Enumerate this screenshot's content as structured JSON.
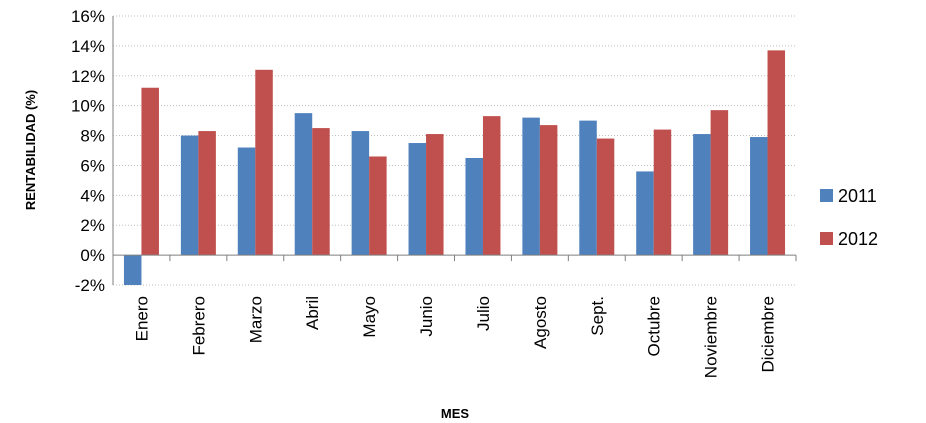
{
  "chart_data": {
    "type": "bar",
    "categories": [
      "Enero",
      "Febrero",
      "Marzo",
      "Abril",
      "Mayo",
      "Junio",
      "Julio",
      "Agosto",
      "Sept.",
      "Octubre",
      "Noviembre",
      "Diciembre"
    ],
    "series": [
      {
        "name": "2011",
        "color": "#4f81bd",
        "values": [
          -2.0,
          8.0,
          7.2,
          9.5,
          8.3,
          7.5,
          6.5,
          9.2,
          9.0,
          5.6,
          8.1,
          7.9
        ]
      },
      {
        "name": "2012",
        "color": "#c0504d",
        "values": [
          11.2,
          8.3,
          12.4,
          8.5,
          6.6,
          8.1,
          9.3,
          8.7,
          7.8,
          8.4,
          9.7,
          13.7
        ]
      }
    ],
    "xlabel": "MES",
    "ylabel": "RENTABILIDAD (%)",
    "ylim": [
      -2,
      16
    ],
    "yticks": [
      "16%",
      "14%",
      "12%",
      "10%",
      "8%",
      "6%",
      "4%",
      "2%",
      "0%",
      "-2%"
    ],
    "ytick_values": [
      16,
      14,
      12,
      10,
      8,
      6,
      4,
      2,
      0,
      -2
    ],
    "grid": true,
    "legend_position": "right"
  }
}
